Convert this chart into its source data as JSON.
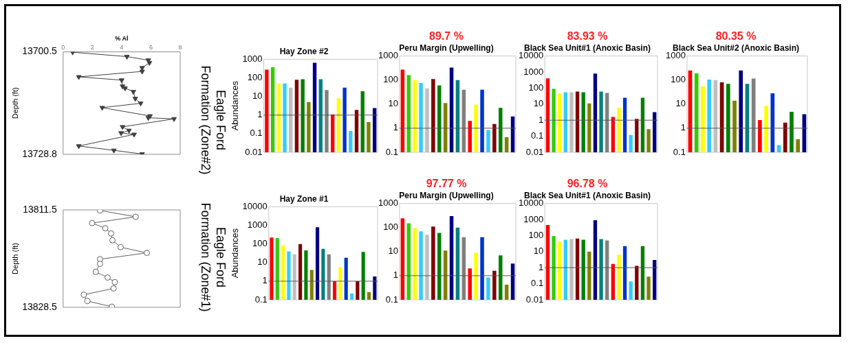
{
  "chart_data": [
    {
      "type": "line",
      "xlabel": "% Al",
      "ylabel": "Depth (ft)",
      "annotations": [
        "Eagle Ford",
        "Formation (Zone#2)"
      ],
      "color": "#404040",
      "marker": "triangle",
      "xlim": [
        0,
        8
      ],
      "xticks": [
        0,
        2,
        4,
        6,
        8
      ],
      "ylim": [
        13728.8,
        13700.5
      ],
      "yticks": [
        13700.5,
        13728.8
      ],
      "x": [
        0.65,
        4.36,
        5.82,
        5.9,
        5.4,
        5.4,
        1.07,
        4.0,
        4.06,
        4.23,
        4.8,
        4.93,
        5.3,
        2.67,
        5.94,
        5.82,
        7.58,
        4.06,
        4.5,
        3.96,
        4.85,
        1.07,
        3.47,
        5.4
      ],
      "values": [
        13700.6,
        13701.8,
        13702.8,
        13703.5,
        13704.9,
        13705.9,
        13707.4,
        13708.3,
        13710.0,
        13710.5,
        13711.5,
        13713.4,
        13714.7,
        13715.9,
        13718.2,
        13718.7,
        13719.0,
        13721.2,
        13722.2,
        13722.9,
        13723.3,
        13726.5,
        13727.7,
        13728.7
      ]
    },
    {
      "type": "bar",
      "title": "Hay Zone #2",
      "ylabel": "Abundances",
      "log": true,
      "ylim": [
        0.01,
        1000
      ],
      "yticks": [
        0.01,
        0.1,
        1,
        10,
        100,
        1000
      ],
      "ref_lines": [
        {
          "axis": "y",
          "value": 1
        }
      ],
      "categories": [
        null,
        null,
        null,
        null,
        null,
        null,
        null,
        null,
        null,
        null,
        null,
        null,
        null,
        null,
        null,
        null,
        null,
        null,
        null
      ],
      "colors": [
        "#ff0000",
        "#33cc00",
        "#ffff00",
        "#33ccff",
        "#c0c0c0",
        "#800000",
        "#008000",
        "#808000",
        "#000080",
        "#008080",
        "#808080",
        "#ff0000",
        "#ffff00",
        "#0033cc",
        "#33ccff",
        "#800000",
        "#008000",
        "#808000",
        "#000080"
      ],
      "values": [
        280,
        370,
        50,
        50,
        30,
        80,
        85,
        5,
        650,
        85,
        22,
        1.1,
        8,
        30,
        0.14,
        1.9,
        19,
        0.42,
        2.4
      ]
    },
    {
      "type": "bar",
      "subtitle": "89.7 %",
      "title": "Peru Margin (Upwelling)",
      "log": true,
      "ylim": [
        0.1,
        1000
      ],
      "yticks": [
        0.1,
        1,
        10,
        100,
        1000
      ],
      "ref_lines": [
        {
          "axis": "y",
          "value": 1
        }
      ],
      "categories": [
        null,
        null,
        null,
        null,
        null,
        null,
        null,
        null,
        null,
        null,
        null,
        null,
        null,
        null,
        null,
        null,
        null,
        null,
        null
      ],
      "colors": [
        "#ff0000",
        "#33cc00",
        "#ffff00",
        "#33ccff",
        "#c0c0c0",
        "#800000",
        "#008000",
        "#808000",
        "#000080",
        "#008080",
        "#808080",
        "#ff0000",
        "#ffff00",
        "#0033cc",
        "#33ccff",
        "#800000",
        "#008000",
        "#808000",
        "#000080"
      ],
      "values": [
        270,
        160,
        100,
        75,
        45,
        110,
        60,
        11,
        330,
        100,
        40,
        2,
        9.5,
        40,
        0.85,
        1.5,
        7,
        0.42,
        3.1
      ]
    },
    {
      "type": "bar",
      "subtitle": "83.93 %",
      "title": "Black Sea Unit#1 (Anoxic Basin)",
      "log": true,
      "ylim": [
        0.01,
        10000
      ],
      "yticks": [
        0.01,
        0.1,
        1,
        10,
        100,
        1000,
        10000
      ],
      "ref_lines": [
        {
          "axis": "y",
          "value": 1
        }
      ],
      "categories": [
        null,
        null,
        null,
        null,
        null,
        null,
        null,
        null,
        null,
        null,
        null,
        null,
        null,
        null,
        null,
        null,
        null,
        null,
        null
      ],
      "colors": [
        "#ff0000",
        "#33cc00",
        "#ffff00",
        "#33ccff",
        "#c0c0c0",
        "#800000",
        "#008000",
        "#808000",
        "#000080",
        "#008080",
        "#808080",
        "#ff0000",
        "#ffff00",
        "#0033cc",
        "#33ccff",
        "#800000",
        "#008000",
        "#808000",
        "#000080"
      ],
      "values": [
        400,
        90,
        45,
        55,
        55,
        60,
        55,
        11,
        800,
        60,
        50,
        1.6,
        6,
        25,
        0.12,
        1.2,
        25,
        0.28,
        3.2
      ]
    },
    {
      "type": "bar",
      "subtitle": "80.35 %",
      "title": "Black Sea Unit#2 (Anoxic Basin)",
      "log": true,
      "ylim": [
        0.1,
        1000
      ],
      "yticks": [
        0.1,
        1,
        10,
        100,
        1000
      ],
      "ref_lines": [
        {
          "axis": "y",
          "value": 1
        }
      ],
      "categories": [
        null,
        null,
        null,
        null,
        null,
        null,
        null,
        null,
        null,
        null,
        null,
        null,
        null,
        null,
        null,
        null,
        null,
        null,
        null
      ],
      "colors": [
        "#ff0000",
        "#33cc00",
        "#ffff00",
        "#33ccff",
        "#c0c0c0",
        "#800000",
        "#008000",
        "#808000",
        "#000080",
        "#008080",
        "#808080",
        "#ff0000",
        "#ffff00",
        "#0033cc",
        "#33ccff",
        "#800000",
        "#008000",
        "#808000",
        "#000080"
      ],
      "values": [
        250,
        190,
        55,
        105,
        100,
        80,
        70,
        14,
        250,
        70,
        115,
        2.2,
        8.5,
        28,
        0.2,
        1.7,
        4.8,
        0.35,
        3.8
      ]
    },
    {
      "type": "line",
      "ylabel": "Depth (ft)",
      "annotations": [
        "Eagle Ford",
        "Formation (Zone#1)"
      ],
      "color": "#606060",
      "marker": "circle",
      "tick_labels": "y",
      "xlim": [
        0,
        8
      ],
      "ylim": [
        13828.5,
        13811.5
      ],
      "yticks": [
        13811.5,
        13828.5
      ],
      "x": [
        2.52,
        4.96,
        1.98,
        2.88,
        3.28,
        3.37,
        3.93,
        5.72,
        2.52,
        2.52,
        2.23,
        3.04,
        3.53,
        3.45,
        1.41,
        1.66,
        3.33
      ],
      "values": [
        13811.6,
        13812.7,
        13813.8,
        13814.7,
        13815.6,
        13816.8,
        13818.0,
        13819.0,
        13820.1,
        13820.9,
        13822.3,
        13823.3,
        13824.1,
        13825.2,
        13826.3,
        13827.4,
        13828.4
      ]
    },
    {
      "type": "bar",
      "title": "Hay Zone #1",
      "ylabel": "Abundances",
      "log": true,
      "ylim": [
        0.1,
        10000
      ],
      "yticks": [
        0.1,
        1,
        10,
        100,
        1000,
        10000
      ],
      "ref_lines": [
        {
          "axis": "y",
          "value": 1
        }
      ],
      "categories": [
        null,
        null,
        null,
        null,
        null,
        null,
        null,
        null,
        null,
        null,
        null,
        null,
        null,
        null,
        null,
        null,
        null,
        null,
        null
      ],
      "colors": [
        "#ff0000",
        "#33cc00",
        "#ffff00",
        "#33ccff",
        "#c0c0c0",
        "#800000",
        "#008000",
        "#808000",
        "#000080",
        "#008080",
        "#808080",
        "#ff0000",
        "#ffff00",
        "#0033cc",
        "#33ccff",
        "#800000",
        "#008000",
        "#808000",
        "#000080"
      ],
      "values": [
        220,
        210,
        85,
        40,
        28,
        100,
        45,
        4,
        800,
        55,
        28,
        1,
        5.5,
        18,
        0.22,
        1,
        37,
        0.26,
        1.8
      ]
    },
    {
      "type": "bar",
      "subtitle": "97.77 %",
      "title": "Peru Margin (Upwelling)",
      "log": true,
      "ylim": [
        0.1,
        1000
      ],
      "yticks": [
        0.1,
        1,
        10,
        100,
        1000
      ],
      "ref_lines": [
        {
          "axis": "y",
          "value": 1
        }
      ],
      "categories": [
        null,
        null,
        null,
        null,
        null,
        null,
        null,
        null,
        null,
        null,
        null,
        null,
        null,
        null,
        null,
        null,
        null,
        null,
        null
      ],
      "colors": [
        "#ff0000",
        "#33cc00",
        "#ffff00",
        "#33ccff",
        "#c0c0c0",
        "#800000",
        "#008000",
        "#808000",
        "#000080",
        "#008080",
        "#808080",
        "#ff0000",
        "#ffff00",
        "#0033cc",
        "#33ccff",
        "#800000",
        "#008000",
        "#808000",
        "#000080"
      ],
      "values": [
        240,
        150,
        95,
        70,
        50,
        110,
        60,
        11,
        300,
        100,
        40,
        2,
        9,
        40,
        0.85,
        1.6,
        7,
        0.42,
        3.2
      ]
    },
    {
      "type": "bar",
      "subtitle": "96.78 %",
      "title": "Black Sea Unit#1 (Anoxic Basin)",
      "log": true,
      "ylim": [
        0.01,
        10000
      ],
      "yticks": [
        0.01,
        0.1,
        1,
        10,
        100,
        1000,
        10000
      ],
      "ref_lines": [
        {
          "axis": "y",
          "value": 1
        }
      ],
      "categories": [
        null,
        null,
        null,
        null,
        null,
        null,
        null,
        null,
        null,
        null,
        null,
        null,
        null,
        null,
        null,
        null,
        null,
        null,
        null
      ],
      "colors": [
        "#ff0000",
        "#33cc00",
        "#ffff00",
        "#33ccff",
        "#c0c0c0",
        "#800000",
        "#008000",
        "#808000",
        "#000080",
        "#008080",
        "#808080",
        "#ff0000",
        "#ffff00",
        "#0033cc",
        "#33ccff",
        "#800000",
        "#008000",
        "#808000",
        "#000080"
      ],
      "values": [
        450,
        95,
        42,
        55,
        60,
        65,
        55,
        10,
        900,
        60,
        50,
        1.7,
        6.5,
        22,
        0.14,
        1.3,
        22,
        0.28,
        3
      ]
    }
  ]
}
